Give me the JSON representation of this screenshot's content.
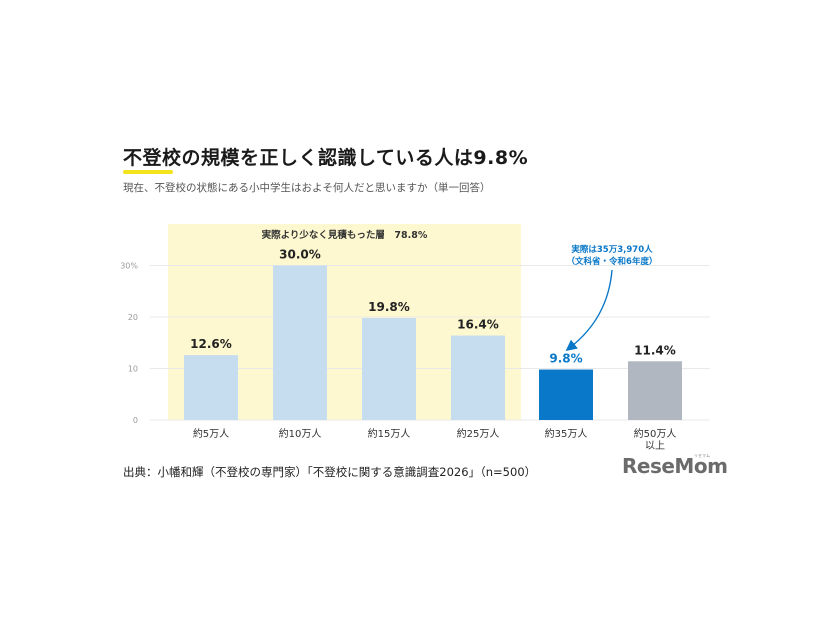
{
  "title": "不登校の規模を正しく認識している人は9.8%",
  "subtitle": "現在、不登校の状態にある小中学生はおよそ何人だと思いますか（単一回答）",
  "source": "出典：小幡和輝（不登校の専門家）「不登校に関する意識調査2026」（n=500）",
  "logo": {
    "text": "ReseMom",
    "kana": "リセマム"
  },
  "colors": {
    "highlight_band": "#fdf8cf",
    "underestimate_bar": "#c5ddef",
    "correct_bar": "#0a78c8",
    "over_bar": "#b0b7c0",
    "correct_label": "#0a78c8",
    "grid": "#e9e9e9",
    "title_underline": "#f4e21c"
  },
  "chart_data": {
    "type": "bar",
    "categories": [
      "約5万人",
      "約10万人",
      "約15万人",
      "約25万人",
      "約35万人",
      [
        "約50万人",
        "以上"
      ]
    ],
    "values": [
      12.6,
      30.0,
      19.8,
      16.4,
      9.8,
      11.4
    ],
    "value_labels": [
      "12.6%",
      "30.0%",
      "19.8%",
      "16.4%",
      "9.8%",
      "11.4%"
    ],
    "bar_groups": [
      "underestimate",
      "underestimate",
      "underestimate",
      "underestimate",
      "correct",
      "over"
    ],
    "y_ticks": [
      0,
      10,
      20,
      30
    ],
    "y_tick_labels": [
      "0",
      "10",
      "20",
      "30%"
    ],
    "ylim": [
      0,
      36
    ],
    "grid": true,
    "band": {
      "label": "実際より少なく見積もった層　78.8%",
      "from_category": 0,
      "to_category": 3
    },
    "annotation": {
      "lines": [
        "実際は35万3,970人",
        "（文科省・令和6年度）"
      ],
      "target_category": 4
    }
  }
}
